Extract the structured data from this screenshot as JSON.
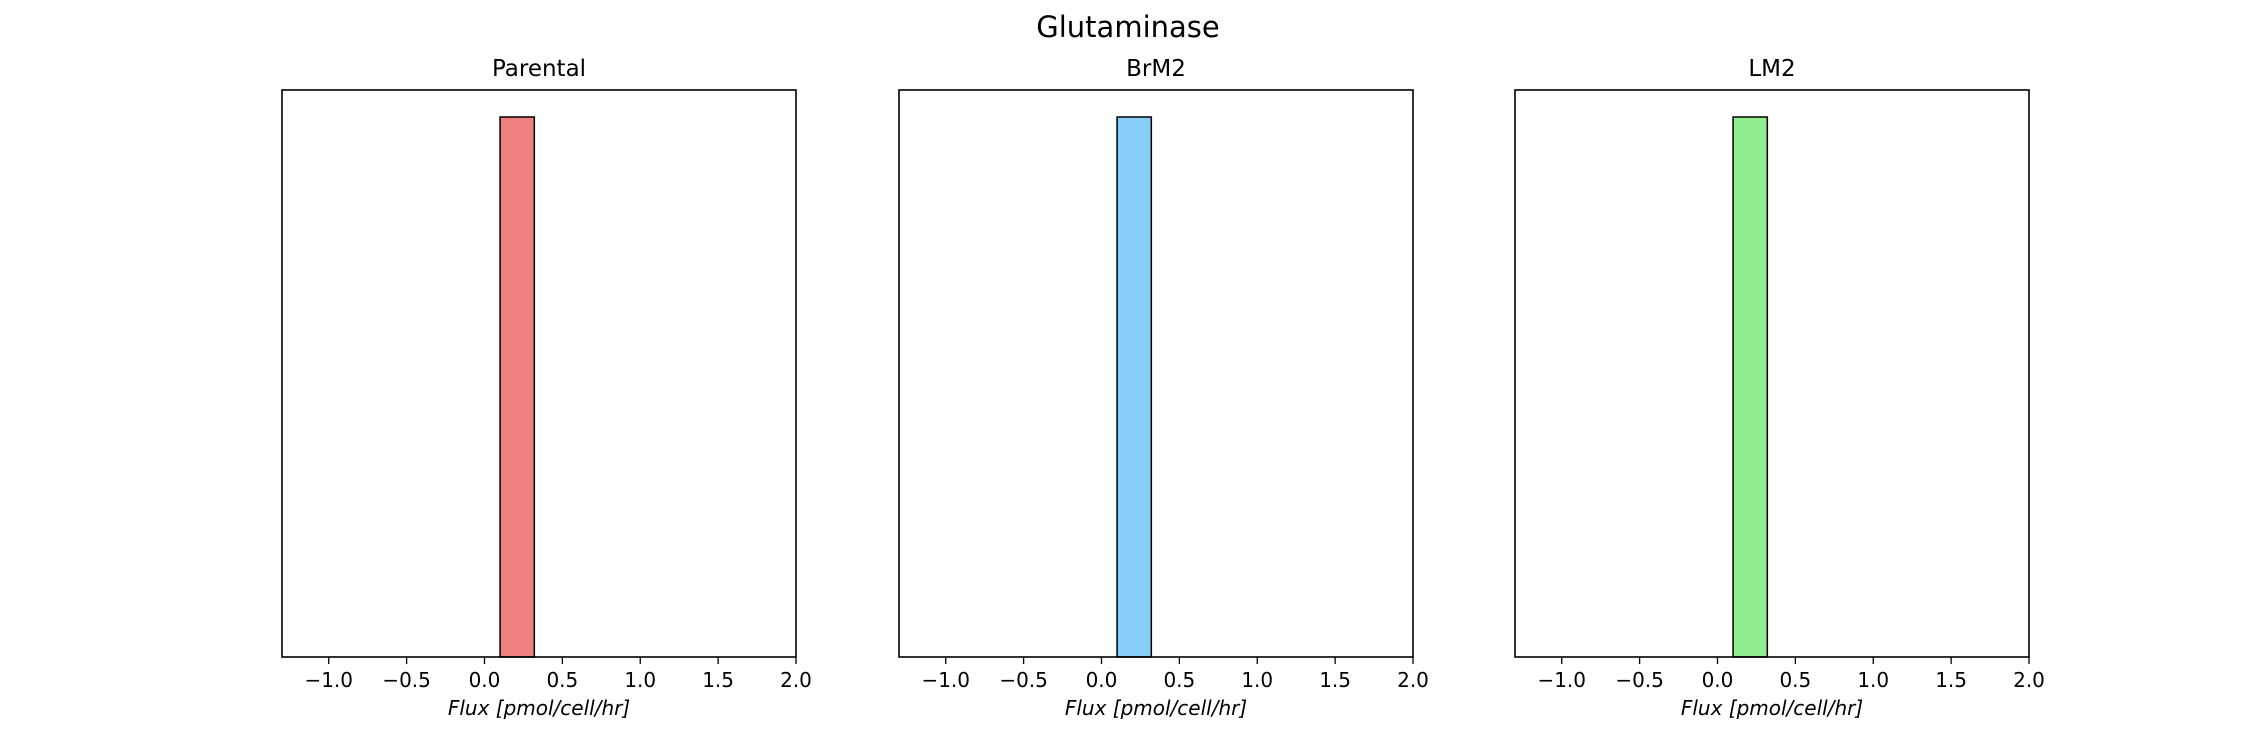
{
  "figure": {
    "title": "Glutaminase"
  },
  "chart_data": [
    {
      "type": "bar",
      "title": "Parental",
      "xlabel": "Flux [pmol/cell/hr]",
      "ylabel": "",
      "xlim": [
        -1.3,
        2.0
      ],
      "ylim": [
        0,
        1.05
      ],
      "xticks": [
        -1.0,
        -0.5,
        0.0,
        0.5,
        1.0,
        1.5,
        2.0
      ],
      "xtick_labels": [
        "−1.0",
        "−0.5",
        "0.0",
        "0.5",
        "1.0",
        "1.5",
        "2.0"
      ],
      "yticks_visible": false,
      "grid": false,
      "bars": [
        {
          "x0": 0.1,
          "x1": 0.32,
          "height": 1.0
        }
      ],
      "color": "#f08080",
      "edgecolor": "#000000"
    },
    {
      "type": "bar",
      "title": "BrM2",
      "xlabel": "Flux [pmol/cell/hr]",
      "ylabel": "",
      "xlim": [
        -1.3,
        2.0
      ],
      "ylim": [
        0,
        1.05
      ],
      "xticks": [
        -1.0,
        -0.5,
        0.0,
        0.5,
        1.0,
        1.5,
        2.0
      ],
      "xtick_labels": [
        "−1.0",
        "−0.5",
        "0.0",
        "0.5",
        "1.0",
        "1.5",
        "2.0"
      ],
      "yticks_visible": false,
      "grid": false,
      "bars": [
        {
          "x0": 0.1,
          "x1": 0.32,
          "height": 1.0
        }
      ],
      "color": "#87cefa",
      "edgecolor": "#000000"
    },
    {
      "type": "bar",
      "title": "LM2",
      "xlabel": "Flux [pmol/cell/hr]",
      "ylabel": "",
      "xlim": [
        -1.3,
        2.0
      ],
      "ylim": [
        0,
        1.05
      ],
      "xticks": [
        -1.0,
        -0.5,
        0.0,
        0.5,
        1.0,
        1.5,
        2.0
      ],
      "xtick_labels": [
        "−1.0",
        "−0.5",
        "0.0",
        "0.5",
        "1.0",
        "1.5",
        "2.0"
      ],
      "yticks_visible": false,
      "grid": false,
      "bars": [
        {
          "x0": 0.1,
          "x1": 0.32,
          "height": 1.0
        }
      ],
      "color": "#90ee90",
      "edgecolor": "#000000"
    }
  ]
}
